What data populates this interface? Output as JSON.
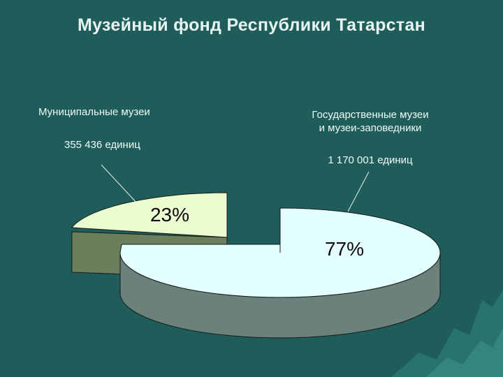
{
  "slide": {
    "title": "Музейный фонд Республики Татарстан"
  },
  "chart_data": {
    "type": "pie",
    "title": "Музейный фонд Республики Татарстан",
    "three_d": true,
    "exploded": true,
    "slices": [
      {
        "label": "Муниципальные музеи",
        "value_text": "355 436 единиц",
        "value": 355436,
        "percent": 23,
        "percent_label": "23%",
        "top_color": "#eafcd0",
        "side_color": "#6a7f5c"
      },
      {
        "label": "Государственные музеи и музеи-заповедники",
        "label_lines": [
          "Государственные музеи",
          "и музеи-заповедники"
        ],
        "value_text": "1 170 001 единиц",
        "value": 1170001,
        "percent": 77,
        "percent_label": "77%",
        "top_color": "#e4ffff",
        "side_color": "#6a817c"
      }
    ]
  },
  "theme": {
    "background": "#1e5d5a",
    "text_color": "#f2fbf9"
  }
}
